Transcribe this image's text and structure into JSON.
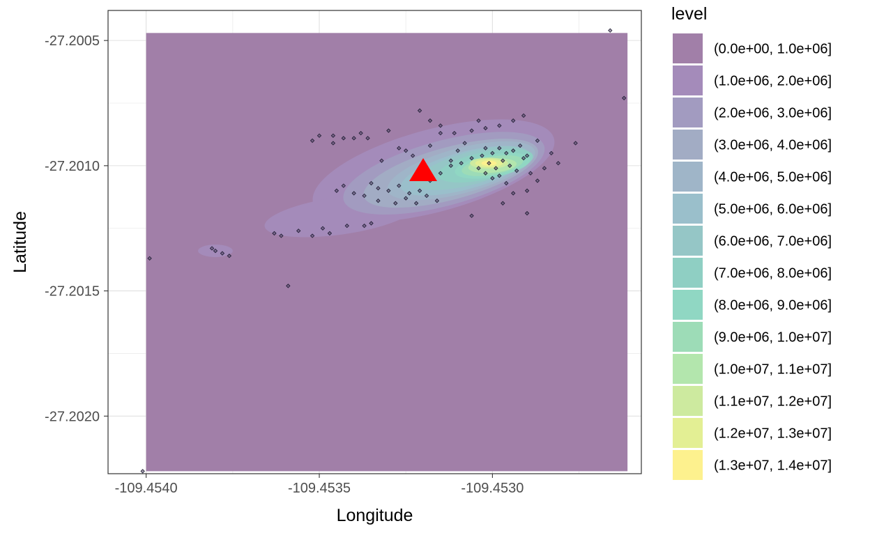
{
  "chart_data": {
    "type": "density",
    "title": "",
    "xlabel": "Longitude",
    "ylabel": "Latitude",
    "xlim": [
      -109.45411,
      -109.45257
    ],
    "ylim": [
      -27.20223,
      -27.20038
    ],
    "x_ticks": [
      -109.454,
      -109.4535,
      -109.453
    ],
    "x_tick_labels": [
      "-109.4540",
      "-109.4535",
      "-109.4530"
    ],
    "y_ticks": [
      -27.2005,
      -27.201,
      -27.2015,
      -27.202
    ],
    "y_tick_labels": [
      "-27.2005",
      "-27.2010",
      "-27.2015",
      "-27.2020"
    ],
    "grid": true,
    "panel_border": true,
    "legend": {
      "title": "level",
      "position": "right",
      "labels": [
        "(0.0e+00, 1.0e+06]",
        "(1.0e+06, 2.0e+06]",
        "(2.0e+06, 3.0e+06]",
        "(3.0e+06, 4.0e+06]",
        "(4.0e+06, 5.0e+06]",
        "(5.0e+06, 6.0e+06]",
        "(6.0e+06, 7.0e+06]",
        "(7.0e+06, 8.0e+06]",
        "(8.0e+06, 9.0e+06]",
        "(9.0e+06, 1.0e+07]",
        "(1.0e+07, 1.1e+07]",
        "(1.1e+07, 1.2e+07]",
        "(1.2e+07, 1.3e+07]",
        "(1.3e+07, 1.4e+07]"
      ],
      "colors": [
        "#a17fa8",
        "#a48bba",
        "#a29bc0",
        "#a2acc4",
        "#9fb5c8",
        "#9abfcb",
        "#95c6c6",
        "#8fcfc3",
        "#90d7c3",
        "#9ddcb7",
        "#b3e6ad",
        "#cdea9f",
        "#e3ef94",
        "#fdf18e"
      ]
    },
    "density_layers": [
      {
        "level": 1,
        "cx": -109.45317,
        "cy": -27.20102,
        "rx": 0.00036,
        "ry": 0.000165,
        "rot": -15
      },
      {
        "level": 1,
        "cx": -109.45344,
        "cy": -27.2012,
        "rx": 0.00022,
        "ry": 7.5e-05,
        "rot": -8
      },
      {
        "level": 1,
        "cx": -109.4538,
        "cy": -27.20134,
        "rx": 5e-05,
        "ry": 2.5e-05,
        "rot": 0
      },
      {
        "level": 2,
        "cx": -109.45314,
        "cy": -27.20103,
        "rx": 0.0003,
        "ry": 0.00013,
        "rot": -15
      },
      {
        "level": 3,
        "cx": -109.45312,
        "cy": -27.20103,
        "rx": 0.00026,
        "ry": 0.000105,
        "rot": -15
      },
      {
        "level": 4,
        "cx": -109.45309,
        "cy": -27.20102,
        "rx": 0.00022,
        "ry": 9e-05,
        "rot": -15
      },
      {
        "level": 5,
        "cx": -109.45308,
        "cy": -27.20102,
        "rx": 0.00019,
        "ry": 7.5e-05,
        "rot": -15
      },
      {
        "level": 6,
        "cx": -109.45306,
        "cy": -27.20101,
        "rx": 0.00017,
        "ry": 6.5e-05,
        "rot": -15
      },
      {
        "level": 7,
        "cx": -109.45302,
        "cy": -27.201,
        "rx": 0.00014,
        "ry": 5.5e-05,
        "rot": -12
      },
      {
        "level": 8,
        "cx": -109.453,
        "cy": -27.201,
        "rx": 0.00011,
        "ry": 4.5e-05,
        "rot": -10
      },
      {
        "level": 9,
        "cx": -109.453,
        "cy": -27.201,
        "rx": 9e-05,
        "ry": 3.6e-05,
        "rot": -10
      },
      {
        "level": 10,
        "cx": -109.453,
        "cy": -27.201,
        "rx": 7e-05,
        "ry": 2.8e-05,
        "rot": -5
      },
      {
        "level": 11,
        "cx": -109.45301,
        "cy": -27.20099,
        "rx": 5.5e-05,
        "ry": 2.2e-05,
        "rot": 0
      },
      {
        "level": 12,
        "cx": -109.45301,
        "cy": -27.20099,
        "rx": 4e-05,
        "ry": 1.6e-05,
        "rot": 0
      },
      {
        "level": 13,
        "cx": -109.45301,
        "cy": -27.20099,
        "rx": 2.2e-05,
        "ry": 1e-05,
        "rot": 0
      }
    ],
    "density_region": {
      "x": [
        -109.454,
        -109.45261
      ],
      "y": [
        -27.20222,
        -27.20047
      ],
      "fill_level": 0
    },
    "point_style": {
      "shape": "diamond",
      "fill": "#5a4b6e",
      "stroke": "#1a1a2e"
    },
    "points": [
      {
        "x": -109.45266,
        "y": -27.20046
      },
      {
        "x": -109.45262,
        "y": -27.20073
      },
      {
        "x": -109.45401,
        "y": -27.20222
      },
      {
        "x": -109.45399,
        "y": -27.20137
      },
      {
        "x": -109.45359,
        "y": -27.20148
      },
      {
        "x": -109.45276,
        "y": -27.20091
      },
      {
        "x": -109.45321,
        "y": -27.20078
      },
      {
        "x": -109.45381,
        "y": -27.20133
      },
      {
        "x": -109.4538,
        "y": -27.20134
      },
      {
        "x": -109.45378,
        "y": -27.20135
      },
      {
        "x": -109.45376,
        "y": -27.20136
      },
      {
        "x": -109.45363,
        "y": -27.20127
      },
      {
        "x": -109.45361,
        "y": -27.20128
      },
      {
        "x": -109.45356,
        "y": -27.20126
      },
      {
        "x": -109.45352,
        "y": -27.20128
      },
      {
        "x": -109.45349,
        "y": -27.20125
      },
      {
        "x": -109.45347,
        "y": -27.20127
      },
      {
        "x": -109.45342,
        "y": -27.20124
      },
      {
        "x": -109.45337,
        "y": -27.20124
      },
      {
        "x": -109.45335,
        "y": -27.20123
      },
      {
        "x": -109.45346,
        "y": -27.20088
      },
      {
        "x": -109.45343,
        "y": -27.20089
      },
      {
        "x": -109.4534,
        "y": -27.20089
      },
      {
        "x": -109.45338,
        "y": -27.20087
      },
      {
        "x": -109.45336,
        "y": -27.20089
      },
      {
        "x": -109.4533,
        "y": -27.20086
      },
      {
        "x": -109.45327,
        "y": -27.20093
      },
      {
        "x": -109.45325,
        "y": -27.20094
      },
      {
        "x": -109.45323,
        "y": -27.20096
      },
      {
        "x": -109.45318,
        "y": -27.20092
      },
      {
        "x": -109.45315,
        "y": -27.20087
      },
      {
        "x": -109.45311,
        "y": -27.20087
      },
      {
        "x": -109.45306,
        "y": -27.20086
      },
      {
        "x": -109.45302,
        "y": -27.20085
      },
      {
        "x": -109.45298,
        "y": -27.20084
      },
      {
        "x": -109.45294,
        "y": -27.20082
      },
      {
        "x": -109.45291,
        "y": -27.2008
      },
      {
        "x": -109.45335,
        "y": -27.20107
      },
      {
        "x": -109.45333,
        "y": -27.20109
      },
      {
        "x": -109.4533,
        "y": -27.2011
      },
      {
        "x": -109.45327,
        "y": -27.20108
      },
      {
        "x": -109.45324,
        "y": -27.20111
      },
      {
        "x": -109.45321,
        "y": -27.2011
      },
      {
        "x": -109.45318,
        "y": -27.20106
      },
      {
        "x": -109.45315,
        "y": -27.20103
      },
      {
        "x": -109.45312,
        "y": -27.20098
      },
      {
        "x": -109.45309,
        "y": -27.20099
      },
      {
        "x": -109.45306,
        "y": -27.20097
      },
      {
        "x": -109.45303,
        "y": -27.20096
      },
      {
        "x": -109.45301,
        "y": -27.20099
      },
      {
        "x": -109.45299,
        "y": -27.20101
      },
      {
        "x": -109.45297,
        "y": -27.20098
      },
      {
        "x": -109.45295,
        "y": -27.201
      },
      {
        "x": -109.45293,
        "y": -27.20102
      },
      {
        "x": -109.45291,
        "y": -27.20097
      },
      {
        "x": -109.45289,
        "y": -27.20103
      },
      {
        "x": -109.45287,
        "y": -27.20106
      },
      {
        "x": -109.45285,
        "y": -27.20101
      },
      {
        "x": -109.45302,
        "y": -27.20093
      },
      {
        "x": -109.453,
        "y": -27.20095
      },
      {
        "x": -109.45298,
        "y": -27.20093
      },
      {
        "x": -109.45296,
        "y": -27.20095
      },
      {
        "x": -109.45294,
        "y": -27.20094
      },
      {
        "x": -109.45292,
        "y": -27.20092
      },
      {
        "x": -109.4529,
        "y": -27.20096
      },
      {
        "x": -109.45304,
        "y": -27.20101
      },
      {
        "x": -109.45302,
        "y": -27.20103
      },
      {
        "x": -109.453,
        "y": -27.20105
      },
      {
        "x": -109.45298,
        "y": -27.20104
      },
      {
        "x": -109.45296,
        "y": -27.20107
      },
      {
        "x": -109.45308,
        "y": -27.20091
      },
      {
        "x": -109.4531,
        "y": -27.20094
      },
      {
        "x": -109.45312,
        "y": -27.201
      },
      {
        "x": -109.45345,
        "y": -27.2011
      },
      {
        "x": -109.45343,
        "y": -27.20108
      },
      {
        "x": -109.4534,
        "y": -27.20111
      },
      {
        "x": -109.45337,
        "y": -27.20112
      },
      {
        "x": -109.45333,
        "y": -27.20114
      },
      {
        "x": -109.45328,
        "y": -27.20115
      },
      {
        "x": -109.45325,
        "y": -27.20113
      },
      {
        "x": -109.45322,
        "y": -27.20115
      },
      {
        "x": -109.45319,
        "y": -27.20112
      },
      {
        "x": -109.45316,
        "y": -27.20114
      },
      {
        "x": -109.45283,
        "y": -27.20095
      },
      {
        "x": -109.45281,
        "y": -27.20099
      },
      {
        "x": -109.4529,
        "y": -27.2011
      },
      {
        "x": -109.45294,
        "y": -27.20111
      },
      {
        "x": -109.45297,
        "y": -27.20115
      },
      {
        "x": -109.4529,
        "y": -27.20119
      },
      {
        "x": -109.45306,
        "y": -27.2012
      },
      {
        "x": -109.45346,
        "y": -27.20091
      },
      {
        "x": -109.45352,
        "y": -27.2009
      },
      {
        "x": -109.4535,
        "y": -27.20088
      },
      {
        "x": -109.45332,
        "y": -27.20098
      },
      {
        "x": -109.45304,
        "y": -27.20082
      },
      {
        "x": -109.45315,
        "y": -27.20084
      },
      {
        "x": -109.45318,
        "y": -27.20082
      },
      {
        "x": -109.45287,
        "y": -27.2009
      }
    ],
    "marker": {
      "shape": "triangle",
      "color": "#ff0000",
      "x": -109.4532,
      "y": -27.20102
    }
  }
}
